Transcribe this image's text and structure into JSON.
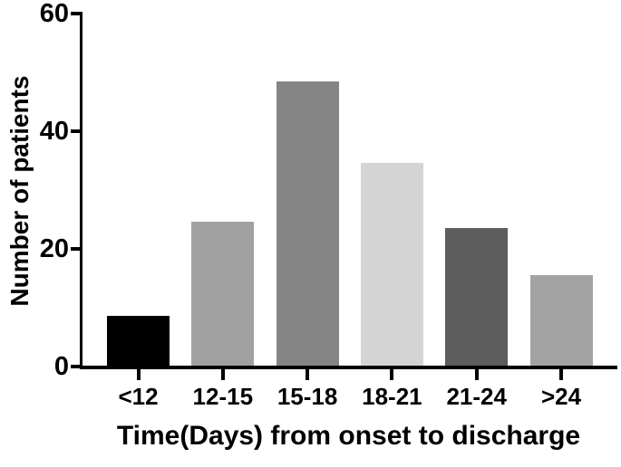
{
  "chart_data": {
    "type": "bar",
    "title": "",
    "xlabel": "Time(Days) from onset to discharge",
    "ylabel": "Number of patients",
    "categories": [
      "<12",
      "12-15",
      "15-18",
      "18-21",
      "21-24",
      ">24"
    ],
    "values": [
      8.5,
      24.5,
      48.5,
      34.5,
      23.5,
      15.5
    ],
    "bar_colors": [
      "#000000",
      "#a1a1a1",
      "#858585",
      "#d4d4d4",
      "#5d5d5d",
      "#a3a3a3"
    ],
    "ylim": [
      0,
      60
    ],
    "yticks": [
      0,
      20,
      40,
      60
    ],
    "grid": false,
    "legend_position": "none",
    "axis_color": "#000000",
    "text_color": "#000000",
    "background_color": "#ffffff"
  }
}
